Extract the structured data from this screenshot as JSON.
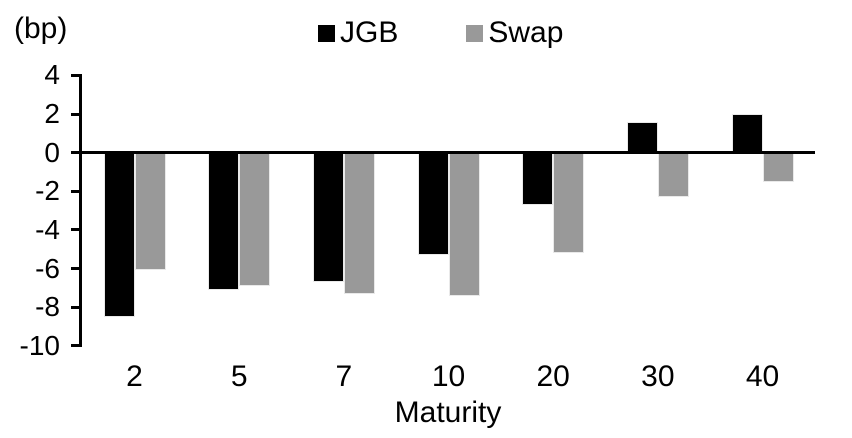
{
  "chart_data": {
    "type": "bar",
    "title": "",
    "unit_label": "(bp)",
    "xlabel": "Maturity",
    "categories": [
      "2",
      "5",
      "7",
      "10",
      "20",
      "30",
      "40"
    ],
    "series": [
      {
        "name": "JGB",
        "color": "#000000",
        "values": [
          -8.5,
          -7.1,
          -6.7,
          -5.3,
          -2.7,
          1.6,
          2.0
        ]
      },
      {
        "name": "Swap",
        "color": "#999999",
        "values": [
          -6.1,
          -6.9,
          -7.3,
          -7.4,
          -5.2,
          -2.3,
          -1.5
        ]
      }
    ],
    "ylim": [
      -10,
      4
    ],
    "yticks": [
      4,
      2,
      0,
      -2,
      -4,
      -6,
      -8,
      -10
    ],
    "grid": false,
    "legend_position": "top-center",
    "axis_color": "#000000",
    "background": "#ffffff"
  }
}
